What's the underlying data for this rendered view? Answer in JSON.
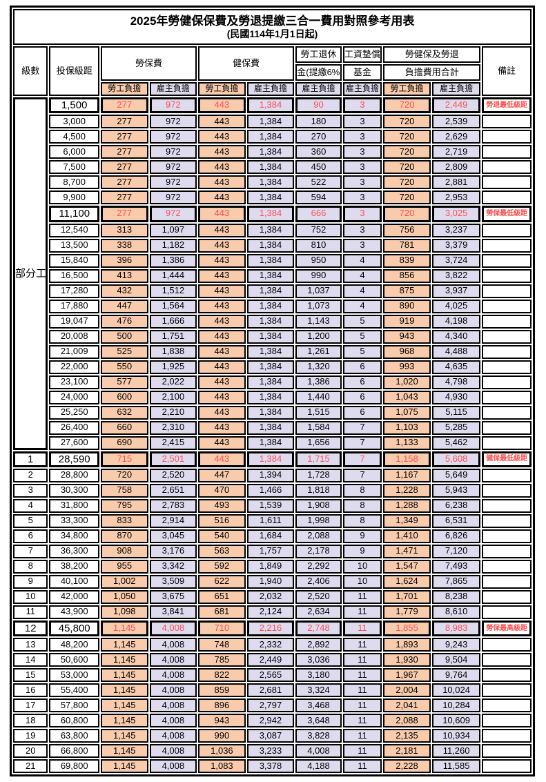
{
  "title": "2025年勞健保保費及勞退提繳三合一費用對照參考用表",
  "subtitle": "(民國114年1月1日起)",
  "colors": {
    "employee_burden_bg": "#F8CBAD",
    "employer_burden_bg": "#DEDBEE",
    "highlight_red": "#FF4F4F",
    "border": "#000000"
  },
  "header": {
    "level": "級數",
    "bracket": "投保級距",
    "labor_fee": "勞保費",
    "health_fee": "健保費",
    "pension_line1": "勞工退休",
    "pension_line2": "金(提繳6%)",
    "wage_fund_line1": "工資墊償",
    "wage_fund_line2": "基金",
    "total_line1": "勞健保及勞退",
    "total_line2": "負擔費用合計",
    "remark": "備註",
    "employee_burden": "勞工負擔",
    "employer_burden": "雇主負擔"
  },
  "part_time_label": "部分工時",
  "part_time_rowspan": 23,
  "rows": [
    {
      "level": "",
      "bracket": "1,500",
      "values": [
        "277",
        "972",
        "443",
        "1,384",
        "90",
        "3",
        "720",
        "2,449"
      ],
      "remark": "勞退最低級距",
      "hl": true
    },
    {
      "level": "",
      "bracket": "3,000",
      "values": [
        "277",
        "972",
        "443",
        "1,384",
        "180",
        "3",
        "720",
        "2,539"
      ],
      "remark": "",
      "hl": false
    },
    {
      "level": "",
      "bracket": "4,500",
      "values": [
        "277",
        "972",
        "443",
        "1,384",
        "270",
        "3",
        "720",
        "2,629"
      ],
      "remark": "",
      "hl": false
    },
    {
      "level": "",
      "bracket": "6,000",
      "values": [
        "277",
        "972",
        "443",
        "1,384",
        "360",
        "3",
        "720",
        "2,719"
      ],
      "remark": "",
      "hl": false
    },
    {
      "level": "",
      "bracket": "7,500",
      "values": [
        "277",
        "972",
        "443",
        "1,384",
        "450",
        "3",
        "720",
        "2,809"
      ],
      "remark": "",
      "hl": false
    },
    {
      "level": "",
      "bracket": "8,700",
      "values": [
        "277",
        "972",
        "443",
        "1,384",
        "522",
        "3",
        "720",
        "2,881"
      ],
      "remark": "",
      "hl": false
    },
    {
      "level": "",
      "bracket": "9,900",
      "values": [
        "277",
        "972",
        "443",
        "1,384",
        "594",
        "3",
        "720",
        "2,953"
      ],
      "remark": "",
      "hl": false
    },
    {
      "level": "",
      "bracket": "11,100",
      "values": [
        "277",
        "972",
        "443",
        "1,384",
        "666",
        "3",
        "720",
        "3,025"
      ],
      "remark": "勞保最低級距",
      "hl": true
    },
    {
      "level": "",
      "bracket": "12,540",
      "values": [
        "313",
        "1,097",
        "443",
        "1,384",
        "752",
        "3",
        "756",
        "3,237"
      ],
      "remark": "",
      "hl": false
    },
    {
      "level": "",
      "bracket": "13,500",
      "values": [
        "338",
        "1,182",
        "443",
        "1,384",
        "810",
        "3",
        "781",
        "3,379"
      ],
      "remark": "",
      "hl": false
    },
    {
      "level": "",
      "bracket": "15,840",
      "values": [
        "396",
        "1,386",
        "443",
        "1,384",
        "950",
        "4",
        "839",
        "3,724"
      ],
      "remark": "",
      "hl": false
    },
    {
      "level": "",
      "bracket": "16,500",
      "values": [
        "413",
        "1,444",
        "443",
        "1,384",
        "990",
        "4",
        "856",
        "3,822"
      ],
      "remark": "",
      "hl": false
    },
    {
      "level": "",
      "bracket": "17,280",
      "values": [
        "432",
        "1,512",
        "443",
        "1,384",
        "1,037",
        "4",
        "875",
        "3,937"
      ],
      "remark": "",
      "hl": false
    },
    {
      "level": "",
      "bracket": "17,880",
      "values": [
        "447",
        "1,564",
        "443",
        "1,384",
        "1,073",
        "4",
        "890",
        "4,025"
      ],
      "remark": "",
      "hl": false
    },
    {
      "level": "",
      "bracket": "19,047",
      "values": [
        "476",
        "1,666",
        "443",
        "1,384",
        "1,143",
        "5",
        "919",
        "4,198"
      ],
      "remark": "",
      "hl": false
    },
    {
      "level": "",
      "bracket": "20,008",
      "values": [
        "500",
        "1,751",
        "443",
        "1,384",
        "1,200",
        "5",
        "943",
        "4,340"
      ],
      "remark": "",
      "hl": false
    },
    {
      "level": "",
      "bracket": "21,009",
      "values": [
        "525",
        "1,838",
        "443",
        "1,384",
        "1,261",
        "5",
        "968",
        "4,488"
      ],
      "remark": "",
      "hl": false
    },
    {
      "level": "",
      "bracket": "22,000",
      "values": [
        "550",
        "1,925",
        "443",
        "1,384",
        "1,320",
        "6",
        "993",
        "4,635"
      ],
      "remark": "",
      "hl": false
    },
    {
      "level": "",
      "bracket": "23,100",
      "values": [
        "577",
        "2,022",
        "443",
        "1,384",
        "1,386",
        "6",
        "1,020",
        "4,798"
      ],
      "remark": "",
      "hl": false
    },
    {
      "level": "",
      "bracket": "24,000",
      "values": [
        "600",
        "2,100",
        "443",
        "1,384",
        "1,440",
        "6",
        "1,043",
        "4,930"
      ],
      "remark": "",
      "hl": false
    },
    {
      "level": "",
      "bracket": "25,250",
      "values": [
        "632",
        "2,210",
        "443",
        "1,384",
        "1,515",
        "6",
        "1,075",
        "5,115"
      ],
      "remark": "",
      "hl": false
    },
    {
      "level": "",
      "bracket": "26,400",
      "values": [
        "660",
        "2,310",
        "443",
        "1,384",
        "1,584",
        "7",
        "1,103",
        "5,285"
      ],
      "remark": "",
      "hl": false
    },
    {
      "level": "",
      "bracket": "27,600",
      "values": [
        "690",
        "2,415",
        "443",
        "1,384",
        "1,656",
        "7",
        "1,133",
        "5,462"
      ],
      "remark": "",
      "hl": false
    },
    {
      "level": "1",
      "bracket": "28,590",
      "values": [
        "715",
        "2,501",
        "443",
        "1,384",
        "1,715",
        "7",
        "1,158",
        "5,608"
      ],
      "remark": "健保最低級距",
      "hl": true
    },
    {
      "level": "2",
      "bracket": "28,800",
      "values": [
        "720",
        "2,520",
        "447",
        "1,394",
        "1,728",
        "7",
        "1,167",
        "5,649"
      ],
      "remark": "",
      "hl": false
    },
    {
      "level": "3",
      "bracket": "30,300",
      "values": [
        "758",
        "2,651",
        "470",
        "1,466",
        "1,818",
        "8",
        "1,228",
        "5,943"
      ],
      "remark": "",
      "hl": false
    },
    {
      "level": "4",
      "bracket": "31,800",
      "values": [
        "795",
        "2,783",
        "493",
        "1,539",
        "1,908",
        "8",
        "1,288",
        "6,238"
      ],
      "remark": "",
      "hl": false
    },
    {
      "level": "5",
      "bracket": "33,300",
      "values": [
        "833",
        "2,914",
        "516",
        "1,611",
        "1,998",
        "8",
        "1,349",
        "6,531"
      ],
      "remark": "",
      "hl": false
    },
    {
      "level": "6",
      "bracket": "34,800",
      "values": [
        "870",
        "3,045",
        "540",
        "1,684",
        "2,088",
        "9",
        "1,410",
        "6,826"
      ],
      "remark": "",
      "hl": false
    },
    {
      "level": "7",
      "bracket": "36,300",
      "values": [
        "908",
        "3,176",
        "563",
        "1,757",
        "2,178",
        "9",
        "1,471",
        "7,120"
      ],
      "remark": "",
      "hl": false
    },
    {
      "level": "8",
      "bracket": "38,200",
      "values": [
        "955",
        "3,342",
        "592",
        "1,849",
        "2,292",
        "10",
        "1,547",
        "7,493"
      ],
      "remark": "",
      "hl": false
    },
    {
      "level": "9",
      "bracket": "40,100",
      "values": [
        "1,002",
        "3,509",
        "622",
        "1,940",
        "2,406",
        "10",
        "1,624",
        "7,865"
      ],
      "remark": "",
      "hl": false
    },
    {
      "level": "10",
      "bracket": "42,000",
      "values": [
        "1,050",
        "3,675",
        "651",
        "2,032",
        "2,520",
        "11",
        "1,701",
        "8,238"
      ],
      "remark": "",
      "hl": false
    },
    {
      "level": "11",
      "bracket": "43,900",
      "values": [
        "1,098",
        "3,841",
        "681",
        "2,124",
        "2,634",
        "11",
        "1,779",
        "8,610"
      ],
      "remark": "",
      "hl": false
    },
    {
      "level": "12",
      "bracket": "45,800",
      "values": [
        "1,145",
        "4,008",
        "710",
        "2,216",
        "2,748",
        "11",
        "1,855",
        "8,983"
      ],
      "remark": "勞保最高級距",
      "hl": true
    },
    {
      "level": "13",
      "bracket": "48,200",
      "values": [
        "1,145",
        "4,008",
        "748",
        "2,332",
        "2,892",
        "11",
        "1,893",
        "9,243"
      ],
      "remark": "",
      "hl": false
    },
    {
      "level": "14",
      "bracket": "50,600",
      "values": [
        "1,145",
        "4,008",
        "785",
        "2,449",
        "3,036",
        "11",
        "1,930",
        "9,504"
      ],
      "remark": "",
      "hl": false
    },
    {
      "level": "15",
      "bracket": "53,000",
      "values": [
        "1,145",
        "4,008",
        "822",
        "2,565",
        "3,180",
        "11",
        "1,967",
        "9,764"
      ],
      "remark": "",
      "hl": false
    },
    {
      "level": "16",
      "bracket": "55,400",
      "values": [
        "1,145",
        "4,008",
        "859",
        "2,681",
        "3,324",
        "11",
        "2,004",
        "10,024"
      ],
      "remark": "",
      "hl": false
    },
    {
      "level": "17",
      "bracket": "57,800",
      "values": [
        "1,145",
        "4,008",
        "896",
        "2,797",
        "3,468",
        "11",
        "2,041",
        "10,284"
      ],
      "remark": "",
      "hl": false
    },
    {
      "level": "18",
      "bracket": "60,800",
      "values": [
        "1,145",
        "4,008",
        "943",
        "2,942",
        "3,648",
        "11",
        "2,088",
        "10,609"
      ],
      "remark": "",
      "hl": false
    },
    {
      "level": "19",
      "bracket": "63,800",
      "values": [
        "1,145",
        "4,008",
        "990",
        "3,087",
        "3,828",
        "11",
        "2,135",
        "10,934"
      ],
      "remark": "",
      "hl": false
    },
    {
      "level": "20",
      "bracket": "66,800",
      "values": [
        "1,145",
        "4,008",
        "1,036",
        "3,233",
        "4,008",
        "11",
        "2,181",
        "11,260"
      ],
      "remark": "",
      "hl": false
    },
    {
      "level": "21",
      "bracket": "69,800",
      "values": [
        "1,145",
        "4,008",
        "1,083",
        "3,378",
        "4,188",
        "11",
        "2,228",
        "11,585"
      ],
      "remark": "",
      "hl": false
    }
  ]
}
